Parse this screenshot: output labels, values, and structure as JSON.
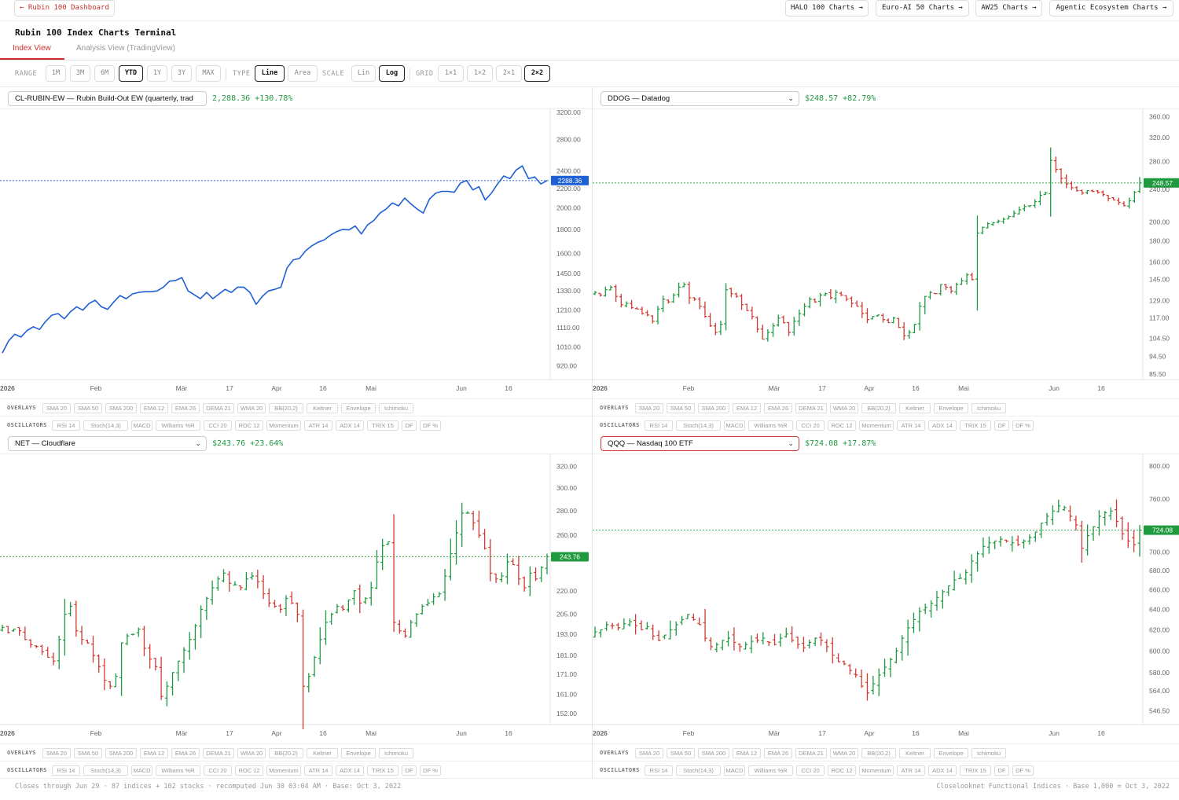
{
  "topbar": {
    "dashboard_link": "← Rubin 100 Dashboard",
    "nav": [
      "HALO 100 Charts →",
      "Euro-AI 50 Charts →",
      "AW25 Charts →",
      "Agentic Ecosystem Charts →"
    ]
  },
  "page_title": "Rubin 100 Index Charts Terminal",
  "tabs": {
    "index_view": "Index View",
    "analysis_view": "Analysis View (TradingView)"
  },
  "toolbar": {
    "range_label": "RANGE",
    "ranges": [
      "1M",
      "3M",
      "6M",
      "YTD",
      "1Y",
      "3Y",
      "MAX"
    ],
    "range_selected": "YTD",
    "type_label": "TYPE",
    "types": [
      "Line",
      "Area"
    ],
    "type_selected": "Line",
    "scale_label": "SCALE",
    "scales": [
      "Lin",
      "Log"
    ],
    "scale_selected": "Log",
    "grid_label": "GRID",
    "grids": [
      "1×1",
      "1×2",
      "2×1",
      "2×2"
    ],
    "grid_selected": "2×2"
  },
  "overlays_label": "OVERLAYS",
  "overlays": [
    "SMA 20",
    "SMA 50",
    "SMA 200",
    "EMA 12",
    "EMA 26",
    "DEMA 21",
    "WMA 20",
    "BB(20,2)",
    "Keltner",
    "Envelope",
    "Ichimoku"
  ],
  "oscillators_label": "OSCILLATORS",
  "oscillators": [
    "RSI 14",
    "Stoch(14,3)",
    "MACD",
    "Williams %R",
    "CCI 20",
    "ROC 12",
    "Momentum",
    "ATR 14",
    "ADX 14",
    "TRIX 15",
    "DF",
    "DF %"
  ],
  "colors": {
    "accent": "#c8312b",
    "up": "#1f9a3f",
    "down": "#d23a32",
    "line": "#1f5fd6"
  },
  "panels": [
    {
      "selector": "CL-RUBIN-EW — Rubin Build-Out EW (quarterly, trad",
      "value_text": "2,288.36  +130.78%",
      "last_label": "2288.36",
      "chart_data": {
        "type": "line",
        "scale": "log",
        "x_labels": [
          "2026",
          "Feb",
          "Mär",
          "17",
          "Apr",
          "16",
          "Mai",
          "Jun",
          "16"
        ],
        "y_ticks": [
          "920.00",
          "1010.00",
          "1110.00",
          "1210.00",
          "1330.00",
          "1450.00",
          "1600.00",
          "1800.00",
          "2000.00",
          "2200.00",
          "2400.00",
          "2800.00",
          "3200.00"
        ],
        "ylim": [
          860,
          3250
        ],
        "last": 2288.36,
        "values": [
          980,
          1040,
          1075,
          1060,
          1095,
          1115,
          1100,
          1145,
          1180,
          1190,
          1160,
          1200,
          1230,
          1210,
          1250,
          1270,
          1230,
          1215,
          1260,
          1300,
          1280,
          1310,
          1320,
          1325,
          1325,
          1330,
          1355,
          1395,
          1400,
          1420,
          1330,
          1305,
          1280,
          1320,
          1280,
          1310,
          1340,
          1320,
          1355,
          1355,
          1320,
          1245,
          1295,
          1330,
          1340,
          1355,
          1490,
          1550,
          1560,
          1620,
          1660,
          1690,
          1710,
          1750,
          1780,
          1800,
          1795,
          1830,
          1760,
          1840,
          1880,
          1950,
          1990,
          2050,
          2020,
          2100,
          2040,
          1990,
          1950,
          2090,
          2150,
          2170,
          2170,
          2160,
          2260,
          2290,
          2185,
          2220,
          2080,
          2150,
          2250,
          2340,
          2310,
          2410,
          2460,
          2310,
          2330,
          2250,
          2288
        ]
      }
    },
    {
      "selector": "DDOG — Datadog",
      "value_text": "$248.57  +82.79%",
      "last_label": "248.57",
      "chart_data": {
        "type": "ohlc",
        "scale": "log",
        "x_labels": [
          "2026",
          "Feb",
          "Mär",
          "17",
          "Apr",
          "16",
          "Mai",
          "Jun",
          "16"
        ],
        "y_ticks": [
          "85.50",
          "94.50",
          "104.50",
          "117.00",
          "129.00",
          "145.00",
          "160.00",
          "180.00",
          "200.00",
          "240.00",
          "280.00",
          "320.00",
          "360.00"
        ],
        "ylim": [
          83,
          375
        ],
        "last": 248.57,
        "closes": [
          135,
          133,
          137,
          139,
          132,
          126,
          127,
          124,
          123,
          120,
          119,
          115,
          123,
          130,
          128,
          133,
          139,
          141,
          131,
          130,
          125,
          118,
          112,
          108,
          113,
          137,
          134,
          132,
          126,
          122,
          118,
          110,
          104,
          108,
          112,
          117,
          114,
          108,
          115,
          120,
          125,
          130,
          128,
          133,
          134,
          131,
          135,
          133,
          130,
          127,
          125,
          120,
          116,
          118,
          119,
          116,
          114,
          117,
          111,
          106,
          108,
          113,
          125,
          132,
          135,
          134,
          141,
          139,
          136,
          141,
          144,
          149,
          145,
          188,
          194,
          198,
          199,
          201,
          203,
          206,
          210,
          214,
          218,
          219,
          224,
          232,
          235,
          282,
          268,
          255,
          247,
          242,
          238,
          235,
          238,
          237,
          236,
          233,
          228,
          226,
          223,
          219,
          225,
          236,
          248.57
        ]
      }
    },
    {
      "selector": "NET — Cloudflare",
      "value_text": "$243.76  +23.64%",
      "last_label": "243.76",
      "chart_data": {
        "type": "ohlc",
        "scale": "log",
        "x_labels": [
          "2026",
          "Feb",
          "Mär",
          "17",
          "Apr",
          "16",
          "Mai",
          "Jun",
          "16"
        ],
        "y_ticks": [
          "152.00",
          "161.00",
          "171.00",
          "181.00",
          "193.00",
          "205.00",
          "220.00",
          "243.76",
          "260.00",
          "280.00",
          "300.00",
          "320.00"
        ],
        "ylim": [
          147,
          332
        ],
        "last": 243.76,
        "closes": [
          197,
          194,
          196,
          195,
          190,
          187,
          186,
          183,
          180,
          178,
          190,
          205,
          210,
          195,
          190,
          188,
          181,
          175,
          168,
          165,
          170,
          188,
          192,
          193,
          196,
          185,
          179,
          175,
          160,
          165,
          172,
          178,
          184,
          190,
          198,
          208,
          215,
          222,
          228,
          232,
          225,
          224,
          222,
          228,
          230,
          226,
          218,
          212,
          210,
          208,
          215,
          212,
          205,
          165,
          170,
          180,
          190,
          200,
          205,
          210,
          208,
          214,
          220,
          212,
          215,
          222,
          240,
          252,
          255,
          200,
          195,
          192,
          200,
          205,
          210,
          212,
          216,
          218,
          230,
          246,
          262,
          278,
          278,
          270,
          260,
          250,
          232,
          228,
          230,
          240,
          238,
          228,
          222,
          232,
          228,
          236,
          243.76
        ]
      }
    },
    {
      "selector": "QQQ — Nasdaq 100 ETF",
      "value_text": "$724.08  +17.87%",
      "last_label": "724.08",
      "chart_data": {
        "type": "ohlc",
        "scale": "log",
        "x_labels": [
          "2026",
          "Feb",
          "Mär",
          "17",
          "Apr",
          "16",
          "Mai",
          "Jun",
          "16"
        ],
        "y_ticks": [
          "546.50",
          "564.00",
          "580.00",
          "600.00",
          "620.00",
          "640.00",
          "660.00",
          "680.00",
          "700.00",
          "724.08",
          "760.00",
          "800.00"
        ],
        "ylim": [
          535,
          815
        ],
        "last": 724.08,
        "closes": [
          618,
          620,
          625,
          624,
          622,
          626,
          628,
          624,
          620,
          623,
          614,
          610,
          615,
          620,
          625,
          630,
          635,
          630,
          625,
          612,
          604,
          606,
          610,
          612,
          608,
          604,
          606,
          609,
          610,
          612,
          608,
          606,
          612,
          616,
          610,
          606,
          603,
          608,
          612,
          610,
          604,
          596,
          590,
          588,
          582,
          578,
          568,
          562,
          570,
          578,
          585,
          592,
          600,
          612,
          622,
          630,
          638,
          642,
          646,
          652,
          658,
          664,
          670,
          672,
          678,
          690,
          698,
          706,
          710,
          712,
          714,
          712,
          710,
          708,
          712,
          716,
          722,
          732,
          740,
          746,
          752,
          750,
          740,
          730,
          704,
          718,
          728,
          740,
          744,
          746,
          734,
          720,
          712,
          708,
          724.08
        ]
      }
    }
  ],
  "footer": {
    "left": "Closes through Jun 29 · 87 indices + 102 stocks · recomputed Jun 30 03:04 AM · Base: Oct 3, 2022",
    "right": "Closelooknet Functional Indices · Base 1,000 = Oct 3, 2022"
  }
}
